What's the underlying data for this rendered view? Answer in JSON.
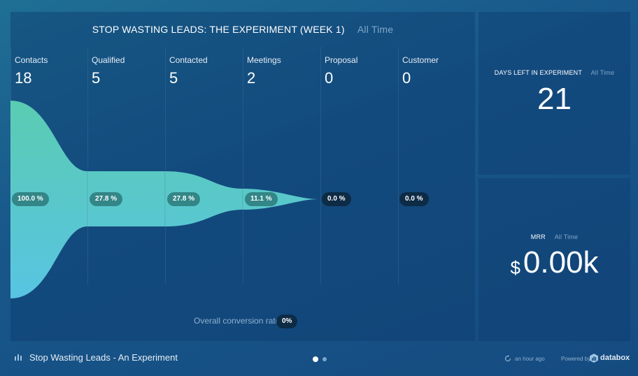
{
  "funnel": {
    "title": "STOP WASTING LEADS: THE EXPERIMENT (WEEK 1)",
    "period": "All Time",
    "stages": [
      {
        "label": "Contacts",
        "value": "18",
        "pct": "100.0 %"
      },
      {
        "label": "Qualified",
        "value": "5",
        "pct": "27.8 %"
      },
      {
        "label": "Contacted",
        "value": "5",
        "pct": "27.8 %"
      },
      {
        "label": "Meetings",
        "value": "2",
        "pct": "11.1 %"
      },
      {
        "label": "Proposal",
        "value": "0",
        "pct": "0.0 %"
      },
      {
        "label": "Customer",
        "value": "0",
        "pct": "0.0 %"
      }
    ],
    "conversion_label": "Overall conversion rate",
    "conversion_value": "0%",
    "colors": {
      "fill_top": "#5ed2b4",
      "fill_bottom": "#5ccbe8"
    }
  },
  "days": {
    "title": "DAYS LEFT IN EXPERIMENT",
    "period": "All Time",
    "value": "21"
  },
  "mrr": {
    "title": "MRR",
    "period": "All Time",
    "currency": "$",
    "value": "0.00k"
  },
  "footer": {
    "dashboard_title": "Stop Wasting Leads - An Experiment",
    "updated": "an hour ago",
    "powered_by": "Powered by",
    "brand": "databox",
    "pages": 2,
    "active_page": 1
  }
}
